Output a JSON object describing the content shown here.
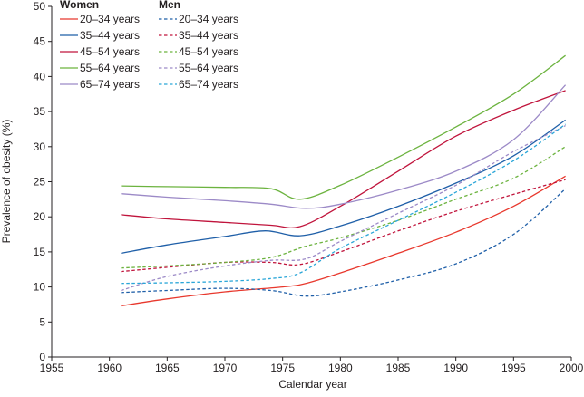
{
  "chart_data": {
    "type": "line",
    "xlabel": "Calendar year",
    "ylabel": "Prevalence of obesity (%)",
    "xlim": [
      1955,
      2000
    ],
    "ylim": [
      0,
      50
    ],
    "xticks": [
      1955,
      1960,
      1965,
      1970,
      1975,
      1980,
      1985,
      1990,
      1995,
      2000
    ],
    "yticks": [
      0,
      5,
      10,
      15,
      20,
      25,
      30,
      35,
      40,
      45,
      50
    ],
    "grid": false,
    "legend": {
      "placement": "top-left",
      "groups": [
        {
          "heading": "Women",
          "style": "solid",
          "entries": [
            "20–34 years",
            "35–44 years",
            "45–54 years",
            "55–64 years",
            "65–74 years"
          ]
        },
        {
          "heading": "Men",
          "style": "dashed",
          "entries": [
            "20–34 years",
            "35–44 years",
            "45–54 years",
            "55–64 years",
            "65–74 years"
          ]
        }
      ]
    },
    "colors": {
      "20–34 years": "#e8382d",
      "35–44 years": "#1f5fa8",
      "45–54 years": "#c0143c",
      "55–64 years": "#6cb33f",
      "65–74 years": "#9c8ac7"
    },
    "colors_men": {
      "20–34 years": "#1f5fa8",
      "35–44 years": "#c0143c",
      "45–54 years": "#6cb33f",
      "55–64 years": "#9c8ac7",
      "65–74 years": "#2aa6d8"
    },
    "series": [
      {
        "group": "Women",
        "age": "20–34 years",
        "dashed": false,
        "points": [
          [
            1961,
            7.3
          ],
          [
            1965,
            8.3
          ],
          [
            1970,
            9.3
          ],
          [
            1975,
            10.0
          ],
          [
            1977,
            10.5
          ],
          [
            1980,
            12.0
          ],
          [
            1985,
            14.8
          ],
          [
            1990,
            17.8
          ],
          [
            1995,
            21.5
          ],
          [
            1999.5,
            25.8
          ]
        ]
      },
      {
        "group": "Women",
        "age": "35–44 years",
        "dashed": false,
        "points": [
          [
            1961,
            14.8
          ],
          [
            1965,
            16.0
          ],
          [
            1970,
            17.2
          ],
          [
            1973.5,
            18.0
          ],
          [
            1976.5,
            17.3
          ],
          [
            1980,
            18.7
          ],
          [
            1985,
            21.5
          ],
          [
            1990,
            24.8
          ],
          [
            1995,
            28.7
          ],
          [
            1999.5,
            33.8
          ]
        ]
      },
      {
        "group": "Women",
        "age": "45–54 years",
        "dashed": false,
        "points": [
          [
            1961,
            20.3
          ],
          [
            1965,
            19.7
          ],
          [
            1970,
            19.2
          ],
          [
            1974,
            18.8
          ],
          [
            1976.5,
            18.6
          ],
          [
            1980,
            21.5
          ],
          [
            1985,
            26.5
          ],
          [
            1990,
            31.5
          ],
          [
            1995,
            35.2
          ],
          [
            1999.5,
            38.0
          ]
        ]
      },
      {
        "group": "Women",
        "age": "55–64 years",
        "dashed": false,
        "points": [
          [
            1961,
            24.4
          ],
          [
            1965,
            24.3
          ],
          [
            1970,
            24.2
          ],
          [
            1974,
            24.0
          ],
          [
            1976.5,
            22.5
          ],
          [
            1980,
            24.5
          ],
          [
            1985,
            28.5
          ],
          [
            1990,
            32.8
          ],
          [
            1995,
            37.5
          ],
          [
            1999.5,
            43.0
          ]
        ]
      },
      {
        "group": "Women",
        "age": "65–74 years",
        "dashed": false,
        "points": [
          [
            1961,
            23.3
          ],
          [
            1965,
            22.8
          ],
          [
            1970,
            22.3
          ],
          [
            1974,
            21.8
          ],
          [
            1977,
            21.2
          ],
          [
            1980,
            21.8
          ],
          [
            1985,
            23.8
          ],
          [
            1990,
            26.5
          ],
          [
            1995,
            31.0
          ],
          [
            1999.5,
            38.8
          ]
        ]
      },
      {
        "group": "Men",
        "age": "20–34 years",
        "dashed": true,
        "points": [
          [
            1961,
            9.2
          ],
          [
            1965,
            9.5
          ],
          [
            1970,
            9.8
          ],
          [
            1974,
            9.5
          ],
          [
            1977,
            8.7
          ],
          [
            1980,
            9.3
          ],
          [
            1985,
            11.0
          ],
          [
            1990,
            13.3
          ],
          [
            1995,
            17.5
          ],
          [
            1999.5,
            24.0
          ]
        ]
      },
      {
        "group": "Men",
        "age": "35–44 years",
        "dashed": true,
        "points": [
          [
            1961,
            12.2
          ],
          [
            1965,
            12.8
          ],
          [
            1970,
            13.5
          ],
          [
            1974,
            13.5
          ],
          [
            1976.5,
            13.2
          ],
          [
            1980,
            15.0
          ],
          [
            1985,
            18.0
          ],
          [
            1990,
            20.8
          ],
          [
            1995,
            23.2
          ],
          [
            1999.5,
            25.3
          ]
        ]
      },
      {
        "group": "Men",
        "age": "45–54 years",
        "dashed": true,
        "points": [
          [
            1961,
            12.7
          ],
          [
            1965,
            13.0
          ],
          [
            1970,
            13.5
          ],
          [
            1974,
            14.2
          ],
          [
            1977,
            15.8
          ],
          [
            1980,
            17.0
          ],
          [
            1985,
            19.5
          ],
          [
            1990,
            22.5
          ],
          [
            1995,
            25.5
          ],
          [
            1999.5,
            30.0
          ]
        ]
      },
      {
        "group": "Men",
        "age": "55–64 years",
        "dashed": true,
        "points": [
          [
            1961,
            9.5
          ],
          [
            1965,
            11.5
          ],
          [
            1970,
            13.0
          ],
          [
            1974,
            13.8
          ],
          [
            1977,
            14.0
          ],
          [
            1980,
            16.5
          ],
          [
            1985,
            20.5
          ],
          [
            1990,
            24.5
          ],
          [
            1995,
            29.3
          ],
          [
            1999.5,
            33.0
          ]
        ]
      },
      {
        "group": "Men",
        "age": "65–74 years",
        "dashed": true,
        "points": [
          [
            1961,
            10.5
          ],
          [
            1965,
            10.6
          ],
          [
            1970,
            10.8
          ],
          [
            1974,
            11.2
          ],
          [
            1976.5,
            12.0
          ],
          [
            1980,
            15.5
          ],
          [
            1985,
            19.5
          ],
          [
            1990,
            23.5
          ],
          [
            1995,
            28.0
          ],
          [
            1999.5,
            33.2
          ]
        ]
      }
    ]
  }
}
